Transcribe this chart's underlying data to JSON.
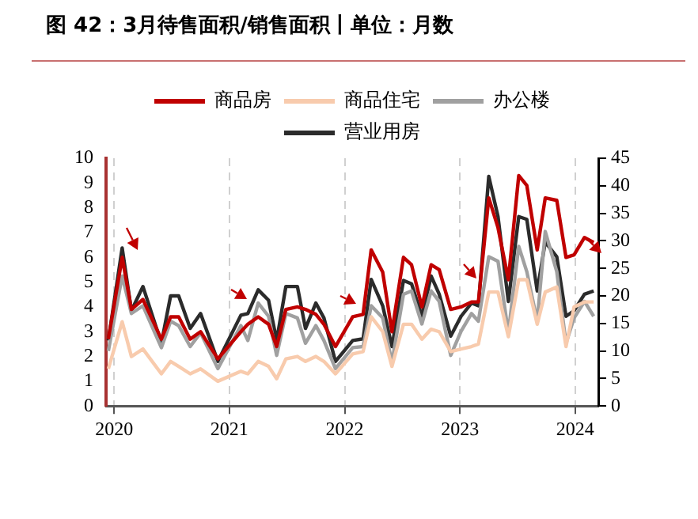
{
  "chart_data": {
    "type": "line",
    "title": "图 42：3月待售面积/销售面积丨单位：月数",
    "x": [
      2019.95,
      2020.07,
      2020.15,
      2020.25,
      2020.41,
      2020.49,
      2020.56,
      2020.66,
      2020.75,
      2020.9,
      2021.1,
      2021.16,
      2021.25,
      2021.34,
      2021.41,
      2021.49,
      2021.59,
      2021.66,
      2021.75,
      2021.82,
      2021.92,
      2022.07,
      2022.16,
      2022.23,
      2022.33,
      2022.41,
      2022.51,
      2022.58,
      2022.67,
      2022.75,
      2022.82,
      2022.92,
      2023.01,
      2023.1,
      2023.16,
      2023.25,
      2023.33,
      2023.42,
      2023.51,
      2023.58,
      2023.67,
      2023.74,
      2023.84,
      2023.92,
      2023.99,
      2024.08,
      2024.16
    ],
    "series": [
      {
        "name": "商品房",
        "color": "#c00000",
        "values": [
          2.7,
          6.0,
          3.9,
          4.3,
          2.7,
          3.6,
          3.6,
          2.7,
          3.0,
          1.9,
          3.0,
          3.3,
          3.6,
          3.3,
          2.4,
          3.9,
          4.0,
          3.9,
          3.7,
          3.3,
          2.4,
          3.6,
          3.7,
          6.3,
          5.4,
          3.0,
          6.0,
          5.7,
          4.0,
          5.7,
          5.5,
          3.9,
          4.0,
          4.2,
          4.2,
          8.4,
          7.2,
          5.1,
          9.3,
          8.9,
          6.3,
          8.4,
          8.3,
          6.0,
          6.1,
          6.8,
          6.6
        ]
      },
      {
        "name": "商品住宅",
        "color": "#f8cbad",
        "values": [
          1.5,
          3.4,
          2.0,
          2.3,
          1.3,
          1.8,
          1.6,
          1.3,
          1.5,
          1.0,
          1.4,
          1.3,
          1.8,
          1.6,
          1.1,
          1.9,
          2.0,
          1.8,
          2.0,
          1.8,
          1.3,
          2.1,
          2.2,
          3.6,
          3.0,
          1.6,
          3.3,
          3.3,
          2.7,
          3.1,
          3.0,
          2.2,
          2.3,
          2.4,
          2.5,
          4.6,
          4.6,
          2.8,
          5.1,
          5.1,
          3.3,
          4.6,
          4.8,
          2.4,
          4.0,
          4.2,
          4.2
        ]
      },
      {
        "name": "办公楼",
        "color": "#a0a0a0",
        "axis": "y2",
        "values": [
          10.0,
          23.6,
          16.8,
          18.2,
          10.6,
          15.4,
          14.6,
          10.8,
          13.3,
          6.8,
          14.6,
          11.9,
          18.7,
          16.3,
          9.2,
          16.8,
          16.0,
          11.4,
          14.6,
          11.9,
          6.8,
          10.6,
          10.8,
          18.2,
          16.0,
          7.9,
          20.3,
          20.9,
          14.9,
          20.9,
          19.0,
          9.2,
          13.6,
          16.8,
          15.4,
          27.1,
          26.3,
          13.3,
          29.0,
          24.4,
          15.4,
          31.7,
          24.4,
          11.4,
          16.0,
          19.0,
          16.3
        ]
      },
      {
        "name": "营业用房",
        "color": "#2b2b2b",
        "axis": "y2",
        "values": [
          11.9,
          28.7,
          17.3,
          21.7,
          11.4,
          20.0,
          20.0,
          14.1,
          16.8,
          8.1,
          16.5,
          16.8,
          21.1,
          19.2,
          11.9,
          21.7,
          21.7,
          14.1,
          18.7,
          16.0,
          8.1,
          11.9,
          12.2,
          23.0,
          18.2,
          10.8,
          22.8,
          22.2,
          16.3,
          23.6,
          20.3,
          12.7,
          16.3,
          18.7,
          18.2,
          41.7,
          34.4,
          19.0,
          34.4,
          33.9,
          20.9,
          29.8,
          27.1,
          16.3,
          17.3,
          20.3,
          20.9
        ]
      }
    ],
    "xlim": [
      2019.93,
      2024.2
    ],
    "xticks": [
      2020,
      2021,
      2022,
      2023,
      2024
    ],
    "ylim": [
      0,
      10
    ],
    "yticks": [
      0,
      1,
      2,
      3,
      4,
      5,
      6,
      7,
      8,
      9,
      10
    ],
    "y2lim": [
      0,
      45
    ],
    "y2ticks": [
      0,
      5,
      10,
      15,
      20,
      25,
      30,
      35,
      40,
      45
    ],
    "grid": "x",
    "legend": "top",
    "marker": "none",
    "line_style": "solid"
  }
}
